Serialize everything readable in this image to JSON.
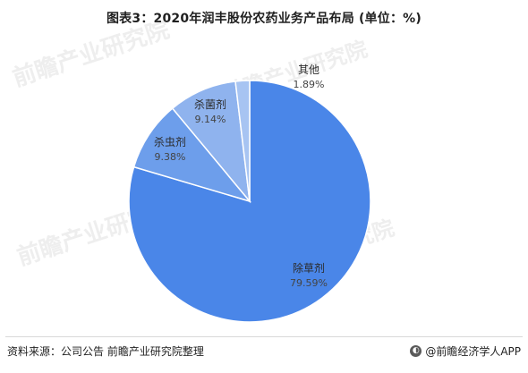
{
  "title": "图表3：2020年润丰股份农药业务产品布局 (单位：%)",
  "colors": {
    "slice": "#4a86e8",
    "slice_border": "#ffffff",
    "label": "#2b2b2b",
    "percent": "#444444",
    "leader": "#b0b0b0"
  },
  "chart_data": {
    "type": "pie",
    "title": "图表3：2020年润丰股份农药业务产品布局 (单位：%)",
    "start_angle_deg": 0,
    "direction": "clockwise",
    "slices": [
      {
        "label": "除草剂",
        "value": 79.59,
        "display": "79.59%",
        "color": "#4a86e8"
      },
      {
        "label": "杀虫剂",
        "value": 9.38,
        "display": "9.38%",
        "color": "#6d9eeb"
      },
      {
        "label": "杀菌剂",
        "value": 9.14,
        "display": "9.14%",
        "color": "#8fb3ee"
      },
      {
        "label": "其他",
        "value": 1.89,
        "display": "1.89%",
        "color": "#a7c4f2"
      }
    ]
  },
  "footer": {
    "source": "资料来源：公司公告 前瞻产业研究院整理",
    "brand": "@前瞻经济学人APP",
    "brand_icon": "qianzhan-logo-icon"
  },
  "watermarks": [
    "前瞻产业研究院",
    "前瞻产业研究院",
    "前瞻产业研究院",
    "前瞻产业研究院"
  ]
}
